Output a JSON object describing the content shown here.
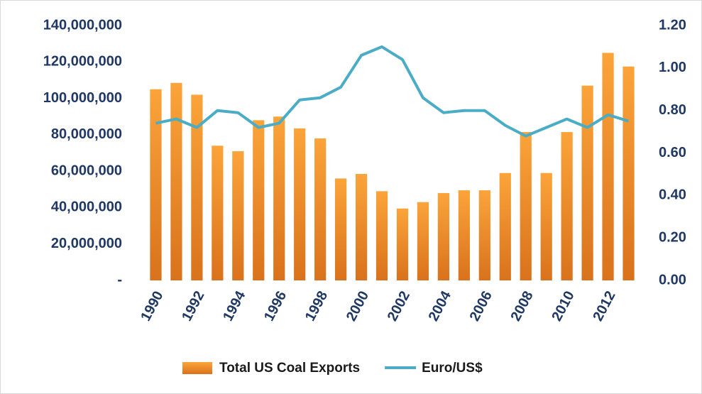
{
  "chart_data": {
    "type": "bar",
    "categories": [
      "1990",
      null,
      "1992",
      null,
      "1994",
      null,
      "1996",
      null,
      "1998",
      null,
      "2000",
      null,
      "2002",
      null,
      "2004",
      null,
      "2006",
      null,
      "2008",
      null,
      "2010",
      null,
      "2012",
      null
    ],
    "series": [
      {
        "name": "Total US Coal Exports",
        "type": "bar",
        "color": "#f39a2e",
        "values": [
          105000000,
          108500000,
          102000000,
          74000000,
          71000000,
          88000000,
          90000000,
          83500000,
          78000000,
          56000000,
          58500000,
          49000000,
          39500000,
          43000000,
          48000000,
          49500000,
          49500000,
          59000000,
          81500000,
          59000000,
          81500000,
          107000000,
          125000000,
          117500000
        ]
      },
      {
        "name": "Euro/US$",
        "type": "line",
        "axis": "y2",
        "color": "#4bacc6",
        "values": [
          0.74,
          0.76,
          0.72,
          0.8,
          0.79,
          0.72,
          0.74,
          0.85,
          0.86,
          0.91,
          1.06,
          1.1,
          1.04,
          0.86,
          0.79,
          0.8,
          0.8,
          0.73,
          0.68,
          0.72,
          0.76,
          0.72,
          0.78,
          0.75
        ]
      }
    ],
    "ylim": [
      0,
      140000000
    ],
    "yticks": [
      {
        "value": 0,
        "label": "-"
      },
      {
        "value": 20000000,
        "label": "20,000,000"
      },
      {
        "value": 40000000,
        "label": "40,000,000"
      },
      {
        "value": 60000000,
        "label": "60,000,000"
      },
      {
        "value": 80000000,
        "label": "80,000,000"
      },
      {
        "value": 100000000,
        "label": "100,000,000"
      },
      {
        "value": 120000000,
        "label": "120,000,000"
      },
      {
        "value": 140000000,
        "label": "140,000,000"
      }
    ],
    "y2lim": [
      0,
      1.2
    ],
    "y2ticks": [
      {
        "value": 0,
        "label": "0.00"
      },
      {
        "value": 0.2,
        "label": "0.20"
      },
      {
        "value": 0.4,
        "label": "0.40"
      },
      {
        "value": 0.6,
        "label": "0.60"
      },
      {
        "value": 0.8,
        "label": "0.80"
      },
      {
        "value": 1.0,
        "label": "1.00"
      },
      {
        "value": 1.2,
        "label": "1.20"
      }
    ]
  }
}
